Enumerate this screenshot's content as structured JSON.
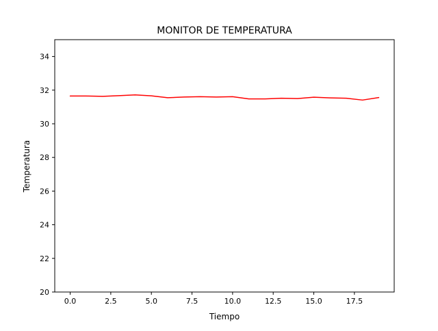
{
  "chart_data": {
    "type": "line",
    "title": "MONITOR DE TEMPERATURA",
    "xlabel": "Tiempo",
    "ylabel": "Temperatura",
    "xlim": [
      -0.95,
      19.95
    ],
    "ylim": [
      20,
      35
    ],
    "xticks": [
      0.0,
      2.5,
      5.0,
      7.5,
      10.0,
      12.5,
      15.0,
      17.5
    ],
    "xtick_labels": [
      "0.0",
      "2.5",
      "5.0",
      "7.5",
      "10.0",
      "12.5",
      "15.0",
      "17.5"
    ],
    "yticks": [
      20,
      22,
      24,
      26,
      28,
      30,
      32,
      34
    ],
    "ytick_labels": [
      "20",
      "22",
      "24",
      "26",
      "28",
      "30",
      "32",
      "34"
    ],
    "grid": false,
    "series": [
      {
        "color": "#ff0000",
        "x": [
          0,
          1,
          2,
          3,
          4,
          5,
          6,
          7,
          8,
          9,
          10,
          11,
          12,
          13,
          14,
          15,
          16,
          17,
          18,
          19
        ],
        "y": [
          31.65,
          31.65,
          31.63,
          31.67,
          31.72,
          31.66,
          31.55,
          31.59,
          31.61,
          31.59,
          31.61,
          31.48,
          31.48,
          31.52,
          31.5,
          31.58,
          31.54,
          31.52,
          31.41,
          31.56
        ]
      }
    ]
  }
}
